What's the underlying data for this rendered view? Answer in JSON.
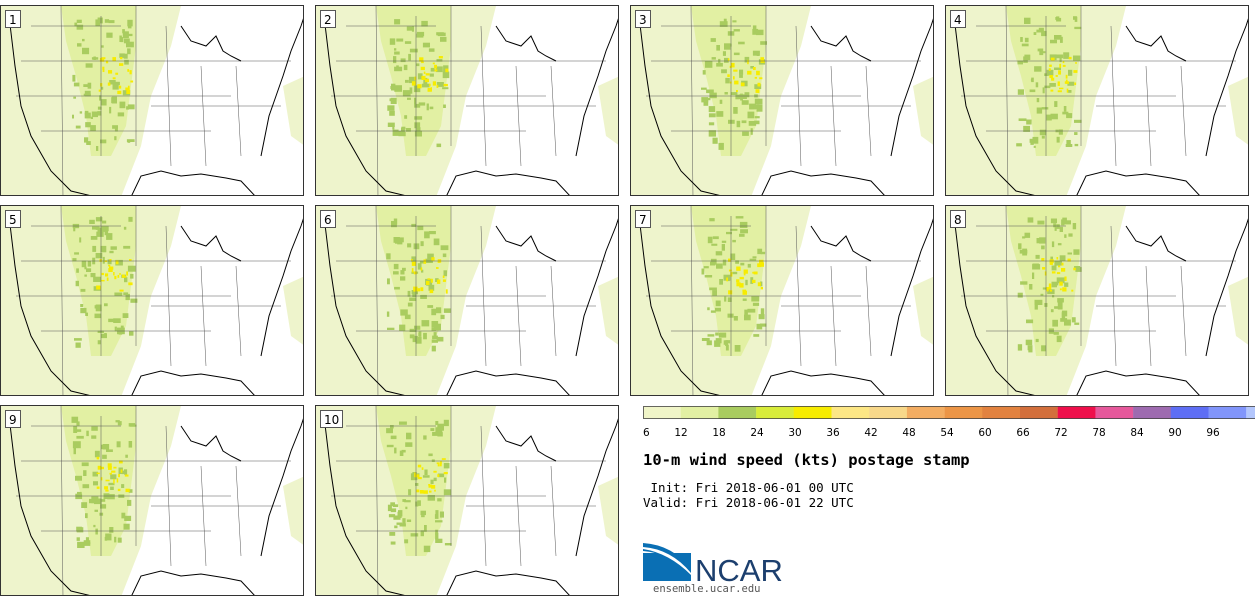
{
  "panels": [
    {
      "label": "1"
    },
    {
      "label": "2"
    },
    {
      "label": "3"
    },
    {
      "label": "4"
    },
    {
      "label": "5"
    },
    {
      "label": "6"
    },
    {
      "label": "7"
    },
    {
      "label": "8"
    },
    {
      "label": "9"
    },
    {
      "label": "10"
    }
  ],
  "colorbar": {
    "ticks": [
      "6",
      "12",
      "18",
      "24",
      "30",
      "36",
      "42",
      "48",
      "54",
      "60",
      "66",
      "72",
      "78",
      "84",
      "90",
      "96"
    ],
    "colors": [
      "#f0f5c8",
      "#e2f0a3",
      "#a9cc5f",
      "#d8ec3a",
      "#f7ec00",
      "#fde785",
      "#f8d88a",
      "#f3ad62",
      "#ec9546",
      "#e2823f",
      "#d36f3c",
      "#ef0f4b",
      "#e6589b",
      "#9e6bb0",
      "#5e6ef5",
      "#8195fb",
      "#b3c6fc"
    ]
  },
  "title": "10-m wind speed (kts) postage stamp",
  "init": " Init: Fri 2018-06-01 00 UTC",
  "valid": "Valid: Fri 2018-06-01 22 UTC",
  "logo": {
    "text": "NCAR",
    "url": "ensemble.ucar.edu",
    "colors": {
      "blue": "#0a6fb4",
      "dark": "#1c3f6e"
    }
  }
}
